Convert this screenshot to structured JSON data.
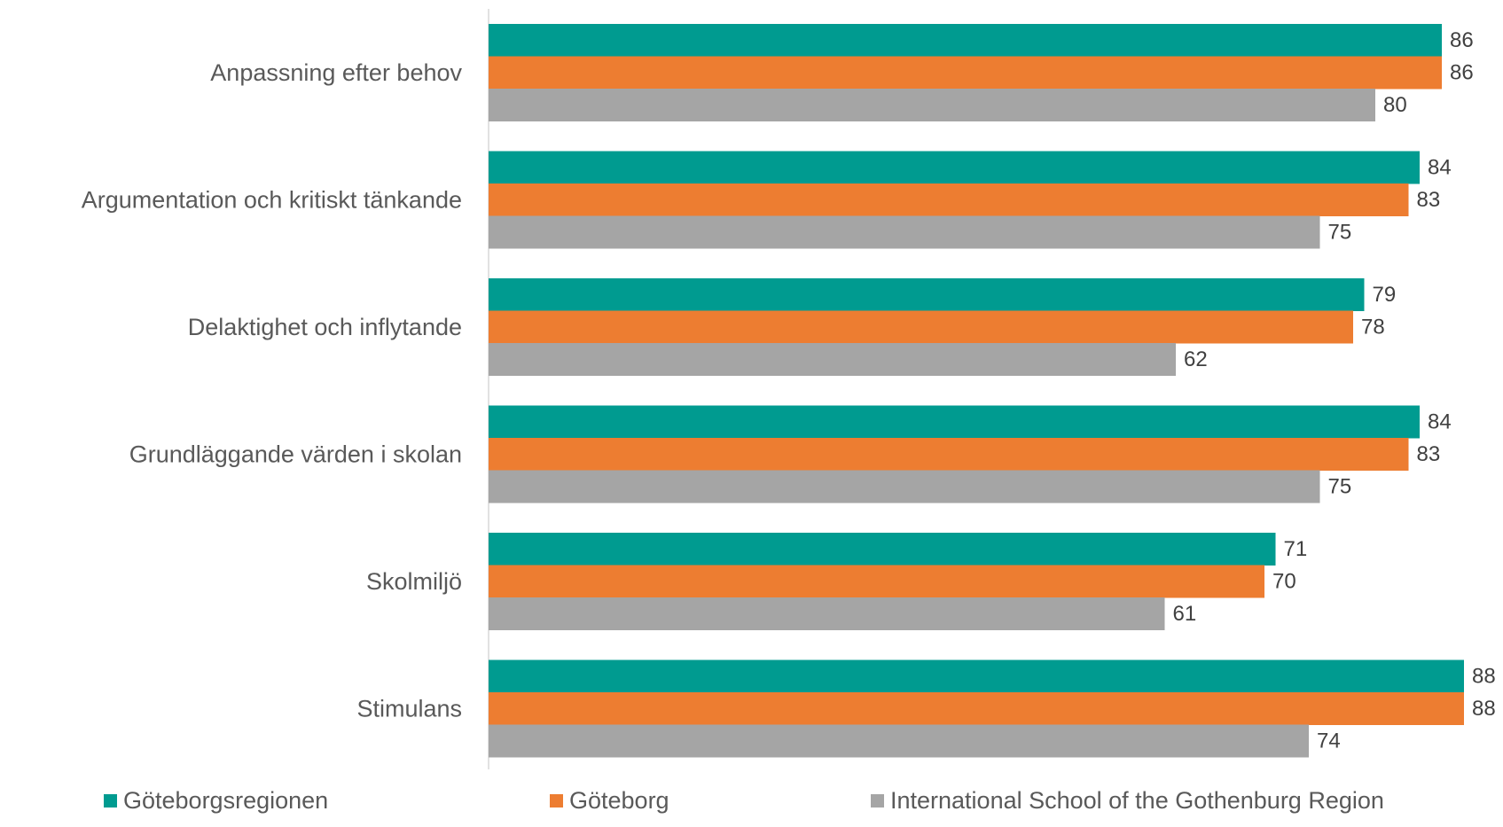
{
  "chart_data": {
    "type": "bar",
    "orientation": "horizontal",
    "categories": [
      "Anpassning efter behov",
      "Argumentation och kritiskt tänkande",
      "Delaktighet och inflytande",
      "Grundläggande värden i skolan",
      "Skolmiljö",
      "Stimulans"
    ],
    "series": [
      {
        "name": "Göteborgsregionen",
        "color": "#009b90",
        "values": [
          86,
          84,
          79,
          84,
          71,
          88
        ]
      },
      {
        "name": "Göteborg",
        "color": "#ed7d31",
        "values": [
          86,
          83,
          78,
          83,
          70,
          88
        ]
      },
      {
        "name": "International School of the Gothenburg Region",
        "color": "#a5a5a5",
        "values": [
          80,
          75,
          62,
          75,
          61,
          74
        ]
      }
    ],
    "xlim": [
      0,
      100
    ],
    "grid": false,
    "data_labels": true,
    "legend_position": "bottom"
  }
}
